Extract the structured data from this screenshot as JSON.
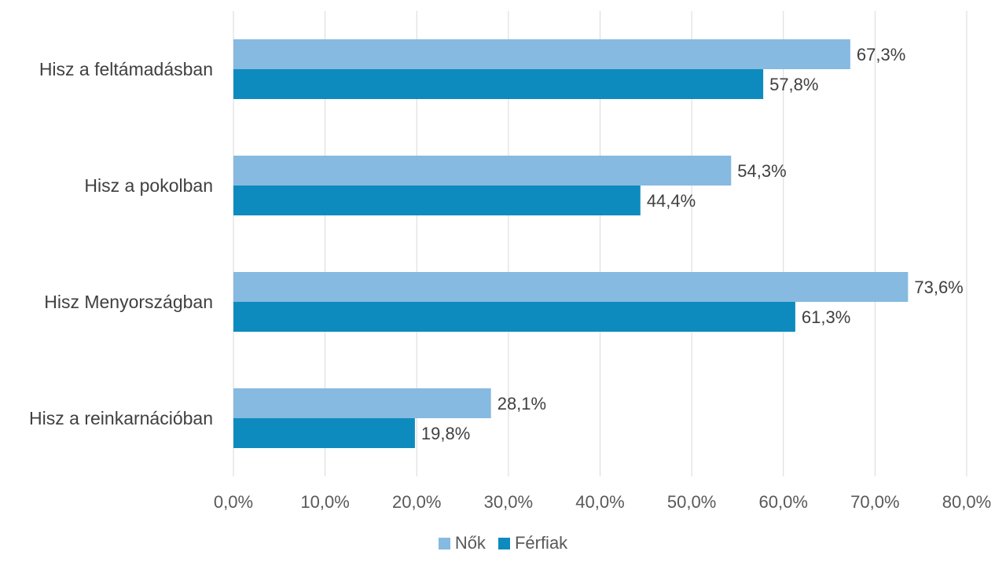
{
  "chart_data": {
    "type": "bar",
    "orientation": "horizontal",
    "title": "",
    "xlabel": "",
    "ylabel": "",
    "categories": [
      "Hisz a feltámadásban",
      "Hisz a pokolban",
      "Hisz Menyországban",
      "Hisz a reinkarnációban"
    ],
    "series": [
      {
        "name": "Nők",
        "color": "#86BAE0",
        "values": [
          67.3,
          54.3,
          73.6,
          28.1
        ],
        "labels": [
          "67,3%",
          "54,3%",
          "73,6%",
          "28,1%"
        ]
      },
      {
        "name": "Férfiak",
        "color": "#0E8BBE",
        "values": [
          57.8,
          44.4,
          61.3,
          19.8
        ],
        "labels": [
          "57,8%",
          "44,4%",
          "61,3%",
          "19,8%"
        ]
      }
    ],
    "xlim": [
      0,
      80
    ],
    "ticks": [
      0,
      10,
      20,
      30,
      40,
      50,
      60,
      70,
      80
    ],
    "tick_labels": [
      "0,0%",
      "10,0%",
      "20,0%",
      "30,0%",
      "40,0%",
      "50,0%",
      "60,0%",
      "70,0%",
      "80,0%"
    ],
    "grid": true,
    "legend_position": "bottom"
  }
}
